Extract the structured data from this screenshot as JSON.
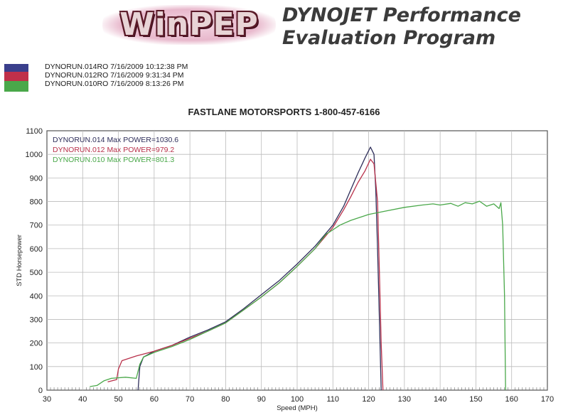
{
  "header": {
    "logo_text": "WinPEP",
    "title_line1": "DYNOJET Performance",
    "title_line2": "Evaluation Program"
  },
  "runs": [
    {
      "text": "DYNORUN.014RO   7/16/2009 10:12:38 PM",
      "color": "#3a3f8c"
    },
    {
      "text": "DYNORUN.012RO   7/16/2009 9:31:34 PM",
      "color": "#c0304a"
    },
    {
      "text": "DYNORUN.010RO   7/16/2009 8:13:26 PM",
      "color": "#4aa84a"
    }
  ],
  "chart_data": {
    "type": "line",
    "title": "FASTLANE MOTORSPORTS 1-800-457-6166",
    "xlabel": "Speed (MPH)",
    "ylabel": "STD Horsepower",
    "xlim": [
      30,
      170
    ],
    "ylim": [
      0,
      1100
    ],
    "x_ticks": [
      30,
      40,
      50,
      60,
      70,
      80,
      90,
      100,
      110,
      120,
      130,
      140,
      150,
      160,
      170
    ],
    "y_ticks": [
      0,
      100,
      200,
      300,
      400,
      500,
      600,
      700,
      800,
      900,
      1000,
      1100
    ],
    "grid": true,
    "legend_position": "top-left",
    "series": [
      {
        "name": "DYNORUN.014",
        "label": "DYNORUN.014  Max POWER=1030.6",
        "color": "#2e2e5a",
        "points": [
          [
            55.5,
            0
          ],
          [
            56,
            100
          ],
          [
            57,
            140
          ],
          [
            60,
            165
          ],
          [
            65,
            190
          ],
          [
            70,
            225
          ],
          [
            75,
            255
          ],
          [
            80,
            290
          ],
          [
            85,
            345
          ],
          [
            90,
            405
          ],
          [
            95,
            465
          ],
          [
            100,
            535
          ],
          [
            105,
            610
          ],
          [
            110,
            700
          ],
          [
            113,
            780
          ],
          [
            115,
            850
          ],
          [
            117,
            920
          ],
          [
            119,
            985
          ],
          [
            120.5,
            1030.6
          ],
          [
            121.5,
            1000
          ],
          [
            122,
            850
          ],
          [
            122.5,
            600
          ],
          [
            123,
            300
          ],
          [
            123.5,
            0
          ]
        ]
      },
      {
        "name": "DYNORUN.012",
        "label": "DYNORUN.012  Max POWER=979.2",
        "color": "#b8304a",
        "points": [
          [
            47,
            35
          ],
          [
            49.5,
            45
          ],
          [
            50,
            90
          ],
          [
            51,
            125
          ],
          [
            55,
            145
          ],
          [
            60,
            165
          ],
          [
            65,
            190
          ],
          [
            70,
            220
          ],
          [
            75,
            250
          ],
          [
            80,
            285
          ],
          [
            85,
            340
          ],
          [
            90,
            395
          ],
          [
            95,
            455
          ],
          [
            100,
            525
          ],
          [
            105,
            600
          ],
          [
            110,
            690
          ],
          [
            113,
            765
          ],
          [
            115,
            820
          ],
          [
            117,
            880
          ],
          [
            119,
            930
          ],
          [
            120.5,
            979.2
          ],
          [
            121.5,
            960
          ],
          [
            122.5,
            800
          ],
          [
            123,
            500
          ],
          [
            123.5,
            200
          ],
          [
            124,
            0
          ]
        ]
      },
      {
        "name": "DYNORUN.010",
        "label": "DYNORUN.010  Max POWER=801.3",
        "color": "#4aa84a",
        "points": [
          [
            42,
            15
          ],
          [
            44,
            20
          ],
          [
            46,
            40
          ],
          [
            48,
            50
          ],
          [
            52,
            55
          ],
          [
            55,
            50
          ],
          [
            56,
            110
          ],
          [
            57,
            140
          ],
          [
            60,
            160
          ],
          [
            65,
            185
          ],
          [
            70,
            215
          ],
          [
            75,
            250
          ],
          [
            80,
            285
          ],
          [
            85,
            340
          ],
          [
            90,
            395
          ],
          [
            95,
            455
          ],
          [
            100,
            525
          ],
          [
            105,
            600
          ],
          [
            108,
            660
          ],
          [
            112,
            700
          ],
          [
            115,
            720
          ],
          [
            120,
            745
          ],
          [
            125,
            760
          ],
          [
            130,
            775
          ],
          [
            135,
            785
          ],
          [
            138,
            790
          ],
          [
            140,
            785
          ],
          [
            143,
            792
          ],
          [
            145,
            780
          ],
          [
            147,
            795
          ],
          [
            149,
            790
          ],
          [
            151,
            801.3
          ],
          [
            153,
            780
          ],
          [
            155,
            790
          ],
          [
            156.5,
            770
          ],
          [
            157,
            795
          ],
          [
            157.5,
            700
          ],
          [
            158,
            400
          ],
          [
            158.3,
            0
          ]
        ]
      }
    ]
  }
}
